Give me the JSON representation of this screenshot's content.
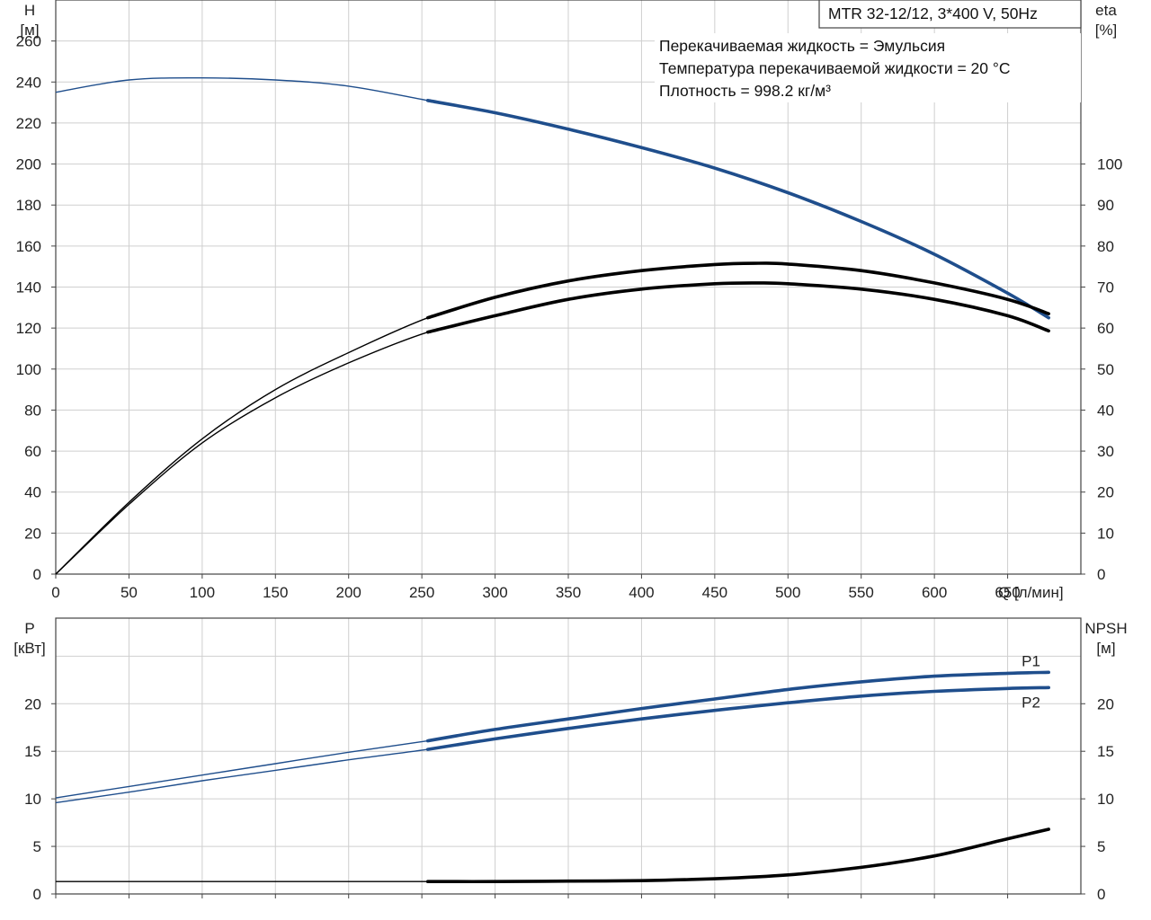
{
  "title": "MTR 32-12/12, 3*400 V, 50Hz",
  "info_lines": [
    "Перекачиваемая жидкость = Эмульсия",
    "Температура перекачиваемой жидкости = 20 °C",
    "Плотность = 998.2 кг/м³"
  ],
  "colors": {
    "blue": "#1f4e8c",
    "black": "#000000",
    "grid": "#cfcfcf"
  },
  "chart_data": [
    {
      "type": "line",
      "xlabel": "Q [л/мин]",
      "x_ticks": [
        "0",
        "50",
        "100",
        "150",
        "200",
        "250",
        "300",
        "350",
        "400",
        "450",
        "500",
        "550",
        "600",
        "650"
      ],
      "xlim": [
        0,
        700
      ],
      "ylabel_left": [
        "H",
        "[м]"
      ],
      "ylim_left": [
        0,
        280
      ],
      "yticks_left": [
        "0",
        "20",
        "40",
        "60",
        "80",
        "100",
        "120",
        "140",
        "160",
        "180",
        "200",
        "220",
        "240",
        "260"
      ],
      "ylabel_right": [
        "eta",
        "[%]"
      ],
      "ylim_right": [
        0,
        140
      ],
      "yticks_right": [
        "0",
        "10",
        "20",
        "30",
        "40",
        "50",
        "60",
        "70",
        "80",
        "90",
        "100"
      ],
      "grid": true,
      "series": [
        {
          "axis": "left",
          "color": "blue",
          "x": [
            0,
            50,
            100,
            150,
            200,
            254,
            300,
            350,
            400,
            450,
            500,
            550,
            600,
            650,
            678
          ],
          "y": [
            235,
            241,
            242,
            241,
            238,
            231,
            225,
            217,
            208,
            198,
            186,
            172,
            156,
            137,
            125
          ],
          "bold_from": 254
        },
        {
          "axis": "right",
          "color": "black",
          "x": [
            0,
            50,
            100,
            150,
            200,
            254,
            300,
            350,
            400,
            450,
            480,
            500,
            550,
            600,
            650,
            678
          ],
          "y": [
            0,
            17.5,
            33,
            45,
            54,
            62.5,
            67.5,
            71.5,
            74,
            75.5,
            75.8,
            75.6,
            74,
            71,
            67,
            63.5
          ],
          "bold_from": 254
        },
        {
          "axis": "right",
          "color": "black",
          "x": [
            0,
            50,
            100,
            150,
            200,
            254,
            300,
            350,
            400,
            450,
            480,
            500,
            550,
            600,
            650,
            678
          ],
          "y": [
            0,
            17,
            32,
            43,
            51.5,
            59,
            63,
            67,
            69.5,
            70.8,
            71,
            70.8,
            69.5,
            67,
            63,
            59.3
          ],
          "bold_from": 254
        }
      ]
    },
    {
      "type": "line",
      "xlim": [
        0,
        700
      ],
      "ylabel_left": [
        "P",
        "[кВт]"
      ],
      "ylim_left": [
        0,
        29
      ],
      "yticks_left": [
        "0",
        "5",
        "10",
        "15",
        "20"
      ],
      "ylabel_right": [
        "NPSH",
        "[м]"
      ],
      "ylim_right": [
        0,
        29
      ],
      "yticks_right": [
        "0",
        "5",
        "10",
        "15",
        "20"
      ],
      "grid": true,
      "series": [
        {
          "name": "P1",
          "axis": "left",
          "color": "blue",
          "x": [
            0,
            50,
            100,
            150,
            200,
            254,
            300,
            350,
            400,
            450,
            500,
            550,
            600,
            650,
            678
          ],
          "y": [
            10.1,
            11.3,
            12.5,
            13.7,
            14.9,
            16.1,
            17.3,
            18.4,
            19.5,
            20.5,
            21.5,
            22.3,
            22.9,
            23.2,
            23.3
          ],
          "bold_from": 254
        },
        {
          "name": "P2",
          "axis": "left",
          "color": "blue",
          "x": [
            0,
            50,
            100,
            150,
            200,
            254,
            300,
            350,
            400,
            450,
            500,
            550,
            600,
            650,
            678
          ],
          "y": [
            9.6,
            10.7,
            11.9,
            13.0,
            14.1,
            15.2,
            16.3,
            17.4,
            18.4,
            19.3,
            20.1,
            20.8,
            21.3,
            21.6,
            21.7
          ],
          "bold_from": 254
        },
        {
          "axis": "right",
          "color": "black",
          "x": [
            0,
            100,
            200,
            254,
            300,
            350,
            400,
            450,
            500,
            550,
            600,
            650,
            678
          ],
          "y": [
            1.3,
            1.3,
            1.3,
            1.3,
            1.3,
            1.35,
            1.4,
            1.6,
            2.0,
            2.8,
            4.0,
            5.8,
            6.8
          ],
          "bold_from": 254
        }
      ]
    }
  ]
}
